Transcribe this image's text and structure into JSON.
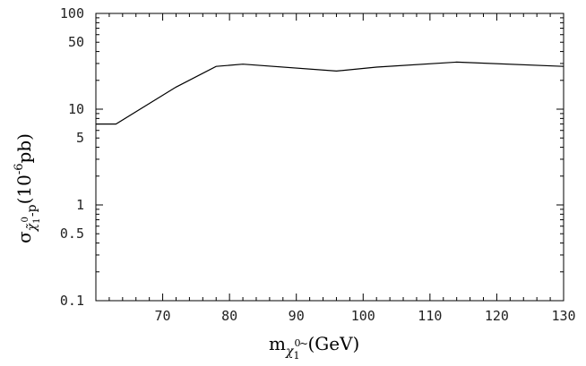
{
  "chart_data": {
    "type": "line",
    "title": "",
    "xlabel": {
      "base": "m",
      "sub_main": "χ",
      "sub_tilde": "~",
      "sub_sub": "1",
      "sub_sup": "0",
      "unit": "(GeV)"
    },
    "ylabel": {
      "base": "σ",
      "sub": "χ̃",
      "sub_sup": "0",
      "sub_sub": "1",
      "sub_tail": "-p",
      "unit_open": "(10",
      "unit_exp": "-6",
      "unit_close": "pb)"
    },
    "x_scale": "linear",
    "y_scale": "log",
    "xlim": [
      60,
      130
    ],
    "ylim": [
      0.1,
      100
    ],
    "x_ticks": [
      70,
      80,
      90,
      100,
      110,
      120,
      130
    ],
    "x_tick_labels": [
      "70",
      "80",
      "90",
      "100",
      "110",
      "120",
      "130"
    ],
    "y_ticks": [
      0.1,
      0.5,
      1,
      5,
      10,
      50,
      100
    ],
    "y_tick_labels": [
      "0.1",
      "0.5",
      "1",
      "5",
      "10",
      "50",
      "100"
    ],
    "grid": false,
    "series": [
      {
        "x": [
          60,
          63,
          72,
          78,
          82,
          96,
          102,
          114,
          130
        ],
        "y": [
          7,
          7,
          17,
          28,
          29.5,
          25,
          27.5,
          31,
          28
        ]
      }
    ]
  }
}
